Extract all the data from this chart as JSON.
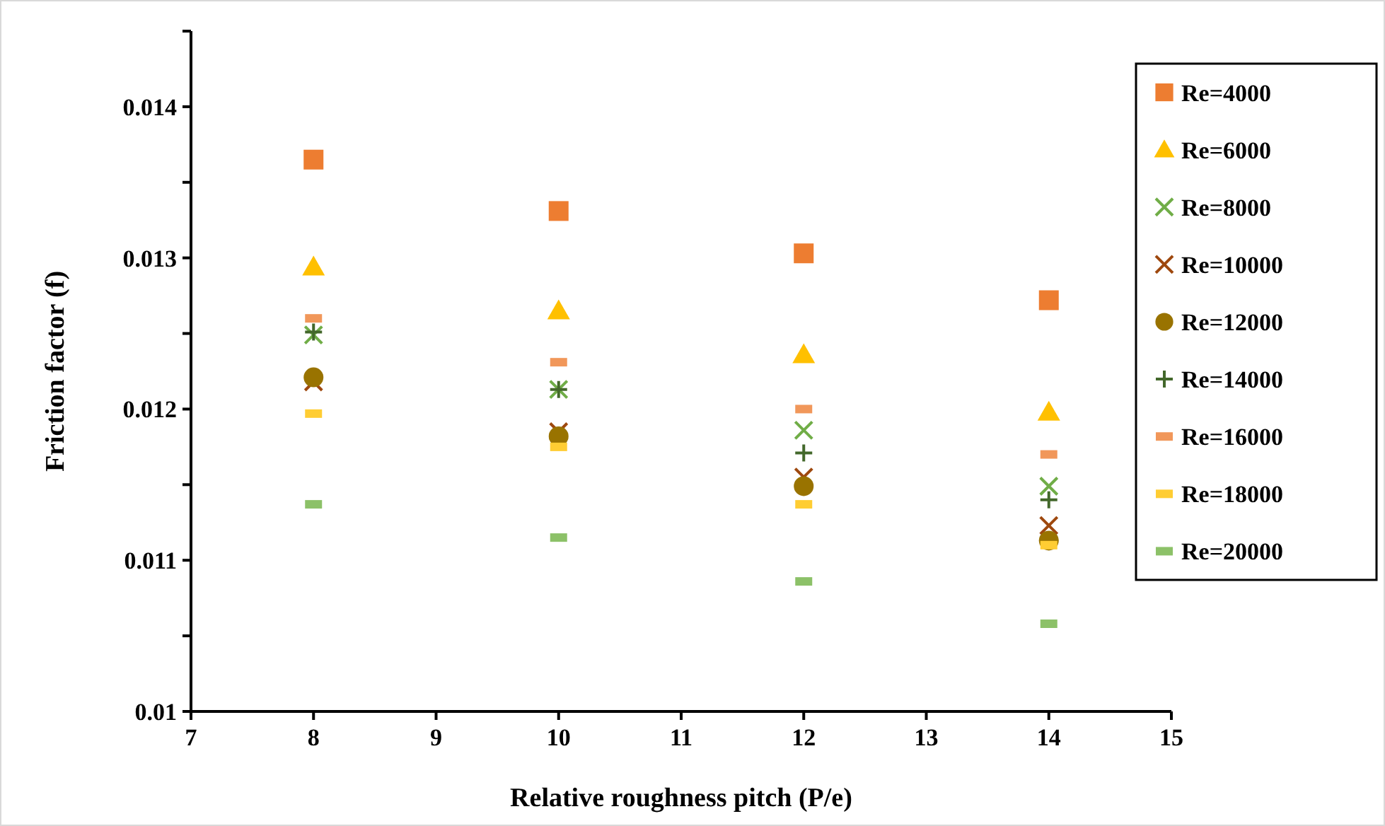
{
  "chart_data": {
    "type": "scatter",
    "xlabel": "Relative roughness pitch (P/e)",
    "ylabel": "Friction factor (f)",
    "x": [
      8,
      10,
      12,
      14
    ],
    "xlim": [
      7,
      15
    ],
    "xticks": [
      7,
      8,
      9,
      10,
      11,
      12,
      13,
      14,
      15
    ],
    "ylim": [
      0.01,
      0.0145
    ],
    "yticks": [
      0.01,
      {
        "value": 0.0105,
        "label": null
      },
      0.011,
      {
        "value": 0.0115,
        "label": null
      },
      0.012,
      {
        "value": 0.0125,
        "label": null
      },
      0.013,
      {
        "value": 0.0135,
        "label": null
      },
      0.014,
      {
        "value": 0.0145,
        "label": null
      }
    ],
    "grid": false,
    "legend": "right",
    "series": [
      {
        "name": "Re=4000",
        "color": "#ed7d31",
        "marker": "square",
        "values": [
          0.01365,
          0.01331,
          0.01303,
          0.01272
        ]
      },
      {
        "name": "Re=6000",
        "color": "#ffc000",
        "marker": "triangle",
        "values": [
          0.01294,
          0.01265,
          0.01236,
          0.01198
        ]
      },
      {
        "name": "Re=8000",
        "color": "#70ad47",
        "marker": "cross",
        "values": [
          0.01249,
          0.01213,
          0.01186,
          0.01149
        ]
      },
      {
        "name": "Re=10000",
        "color": "#9e480e",
        "marker": "cross",
        "values": [
          0.01218,
          0.01185,
          0.01155,
          0.01123
        ]
      },
      {
        "name": "Re=12000",
        "color": "#997300",
        "marker": "circle",
        "values": [
          0.01221,
          0.01182,
          0.01149,
          0.01113
        ]
      },
      {
        "name": "Re=14000",
        "color": "#43682b",
        "marker": "plus",
        "values": [
          0.01251,
          0.01213,
          0.01171,
          0.0114
        ]
      },
      {
        "name": "Re=16000",
        "color": "#f1975a",
        "marker": "square",
        "values": [
          0.0126,
          0.01231,
          0.012,
          0.0117
        ]
      },
      {
        "name": "Re=18000",
        "color": "#ffcd33",
        "marker": "square",
        "values": [
          0.01197,
          0.01175,
          0.01137,
          0.0111
        ]
      },
      {
        "name": "Re=20000",
        "color": "#8cc168",
        "marker": "square",
        "values": [
          0.01137,
          0.01115,
          0.01086,
          0.01058
        ]
      }
    ]
  }
}
